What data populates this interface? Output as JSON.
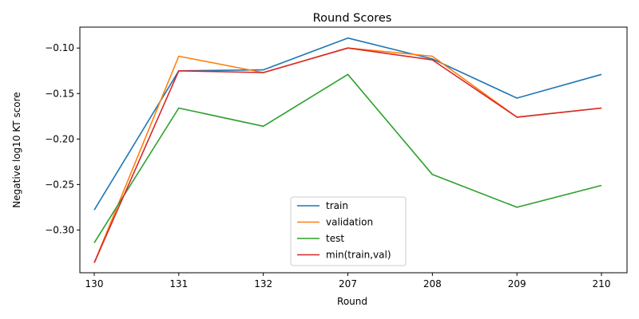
{
  "chart_data": {
    "type": "line",
    "title": "Round Scores",
    "xlabel": "Round",
    "ylabel": "Negative log10 KT score",
    "categories": [
      "130",
      "131",
      "132",
      "207",
      "208",
      "209",
      "210"
    ],
    "ylim": [
      -0.347,
      -0.077
    ],
    "yticks": [
      -0.3,
      -0.25,
      -0.2,
      -0.15,
      -0.1
    ],
    "ytick_labels": [
      "−0.30",
      "−0.25",
      "−0.20",
      "−0.15",
      "−0.10"
    ],
    "grid": false,
    "legend_position": "lower-center",
    "series": [
      {
        "name": "train",
        "color": "#1f77b4",
        "values": [
          -0.278,
          -0.125,
          -0.124,
          -0.089,
          -0.112,
          -0.155,
          -0.129
        ]
      },
      {
        "name": "validation",
        "color": "#ff7f0e",
        "values": [
          -0.336,
          -0.109,
          -0.127,
          -0.1,
          -0.109,
          -0.176,
          -0.166
        ]
      },
      {
        "name": "test",
        "color": "#2ca02c",
        "values": [
          -0.314,
          -0.166,
          -0.186,
          -0.129,
          -0.239,
          -0.275,
          -0.251
        ]
      },
      {
        "name": "min(train,val)",
        "color": "#d62728",
        "values": [
          -0.336,
          -0.125,
          -0.127,
          -0.1,
          -0.113,
          -0.176,
          -0.166
        ]
      }
    ]
  }
}
